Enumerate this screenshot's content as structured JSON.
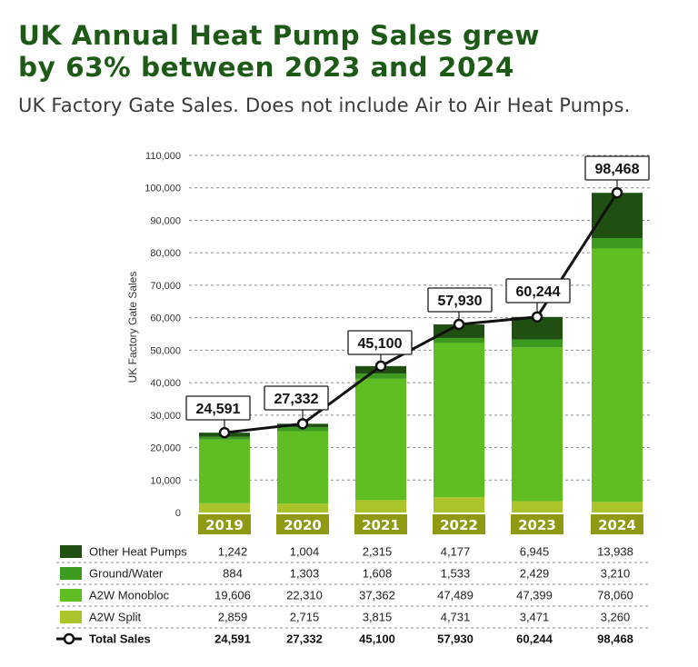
{
  "header": {
    "title_line1": "UK Annual Heat Pump Sales grew",
    "title_line2": "by 63% between 2023 and 2024",
    "subtitle": "UK Factory Gate Sales. Does not include Air to Air Heat Pumps."
  },
  "chart_data": {
    "type": "bar",
    "stacked": true,
    "ylabel": "UK Factory Gate Sales",
    "ylim": [
      0,
      110000
    ],
    "yticks": [
      0,
      10000,
      20000,
      30000,
      40000,
      50000,
      60000,
      70000,
      80000,
      90000,
      100000,
      110000
    ],
    "ytick_labels": [
      "0",
      "10,000",
      "20,000",
      "30,000",
      "40,000",
      "50,000",
      "60,000",
      "70,000",
      "80,000",
      "90,000",
      "100,000",
      "110,000"
    ],
    "grid": "horizontal-dashed",
    "categories": [
      "2019",
      "2020",
      "2021",
      "2022",
      "2023",
      "2024"
    ],
    "series": [
      {
        "name": "Other Heat Pumps",
        "color": "#1f5012",
        "values": [
          1242,
          1004,
          2315,
          4177,
          6945,
          13938
        ],
        "labels": [
          "1,242",
          "1,004",
          "2,315",
          "4,177",
          "6,945",
          "13,938"
        ]
      },
      {
        "name": "Ground/Water",
        "color": "#3c9a1f",
        "values": [
          884,
          1303,
          1608,
          1533,
          2429,
          3210
        ],
        "labels": [
          "884",
          "1,303",
          "1,608",
          "1,533",
          "2,429",
          "3,210"
        ]
      },
      {
        "name": "A2W Monobloc",
        "color": "#5fbf22",
        "values": [
          19606,
          22310,
          37362,
          47489,
          47399,
          78060
        ],
        "labels": [
          "19,606",
          "22,310",
          "37,362",
          "47,489",
          "47,399",
          "78,060"
        ]
      },
      {
        "name": "A2W Split",
        "color": "#aac42a",
        "values": [
          2859,
          2715,
          3815,
          4731,
          3471,
          3260
        ],
        "labels": [
          "2,859",
          "2,715",
          "3,815",
          "4,731",
          "3,471",
          "3,260"
        ]
      }
    ],
    "total": {
      "name": "Total Sales",
      "values": [
        24591,
        27332,
        45100,
        57930,
        60244,
        98468
      ],
      "labels": [
        "24,591",
        "27,332",
        "45,100",
        "57,930",
        "60,244",
        "98,468"
      ]
    },
    "colors": {
      "category_badge": "#8f9a12",
      "total_line": "#111111",
      "callout_border": "#1a1a1a"
    }
  }
}
